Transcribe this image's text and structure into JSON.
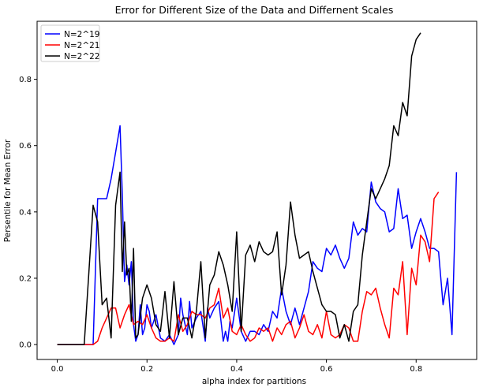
{
  "chart_data": {
    "type": "line",
    "title": "Error for Different Size of the Data and Differnent Scales",
    "xlabel": "alpha index for partitions",
    "ylabel": "Persentile for Mean Error",
    "xlim": [
      -0.045,
      0.935
    ],
    "ylim": [
      -0.045,
      0.975
    ],
    "xticks": [
      0.0,
      0.2,
      0.4,
      0.6,
      0.8
    ],
    "xtick_labels": [
      "0.0",
      "0.2",
      "0.4",
      "0.6",
      "0.8"
    ],
    "yticks": [
      0.0,
      0.2,
      0.4,
      0.6,
      0.8
    ],
    "ytick_labels": [
      "0.0",
      "0.2",
      "0.4",
      "0.6",
      "0.8"
    ],
    "grid": false,
    "legend": "top-left",
    "series": [
      {
        "name": "N=2^19",
        "color": "#0000ff",
        "x": [
          0.0,
          0.02,
          0.04,
          0.06,
          0.08,
          0.09,
          0.1,
          0.11,
          0.12,
          0.13,
          0.14,
          0.145,
          0.15,
          0.155,
          0.16,
          0.165,
          0.17,
          0.175,
          0.18,
          0.185,
          0.19,
          0.195,
          0.2,
          0.205,
          0.21,
          0.22,
          0.23,
          0.24,
          0.25,
          0.26,
          0.27,
          0.275,
          0.28,
          0.29,
          0.295,
          0.3,
          0.31,
          0.32,
          0.33,
          0.335,
          0.34,
          0.35,
          0.36,
          0.37,
          0.375,
          0.38,
          0.385,
          0.39,
          0.4,
          0.41,
          0.42,
          0.43,
          0.44,
          0.45,
          0.46,
          0.47,
          0.48,
          0.49,
          0.5,
          0.51,
          0.52,
          0.53,
          0.54,
          0.55,
          0.56,
          0.57,
          0.58,
          0.59,
          0.6,
          0.61,
          0.62,
          0.63,
          0.64,
          0.65,
          0.66,
          0.67,
          0.68,
          0.69,
          0.7,
          0.71,
          0.72,
          0.73,
          0.74,
          0.75,
          0.76,
          0.77,
          0.78,
          0.79,
          0.8,
          0.81,
          0.82,
          0.83,
          0.84,
          0.85,
          0.86,
          0.87,
          0.88,
          0.89
        ],
        "y": [
          0.0,
          0.0,
          0.0,
          0.0,
          0.0,
          0.44,
          0.44,
          0.44,
          0.5,
          0.58,
          0.66,
          0.45,
          0.19,
          0.24,
          0.18,
          0.25,
          0.06,
          0.01,
          0.03,
          0.12,
          0.03,
          0.05,
          0.12,
          0.1,
          0.05,
          0.09,
          0.02,
          0.01,
          0.03,
          0.0,
          0.03,
          0.14,
          0.09,
          0.03,
          0.13,
          0.05,
          0.08,
          0.1,
          0.01,
          0.11,
          0.08,
          0.11,
          0.13,
          0.01,
          0.04,
          0.01,
          0.07,
          0.05,
          0.14,
          0.04,
          0.01,
          0.04,
          0.04,
          0.03,
          0.06,
          0.04,
          0.1,
          0.08,
          0.17,
          0.1,
          0.06,
          0.11,
          0.06,
          0.11,
          0.16,
          0.25,
          0.23,
          0.22,
          0.29,
          0.27,
          0.3,
          0.26,
          0.23,
          0.26,
          0.37,
          0.33,
          0.35,
          0.34,
          0.49,
          0.43,
          0.41,
          0.4,
          0.34,
          0.35,
          0.47,
          0.38,
          0.39,
          0.29,
          0.34,
          0.38,
          0.34,
          0.29,
          0.29,
          0.28,
          0.12,
          0.2,
          0.03,
          0.52
        ]
      },
      {
        "name": "N=2^21",
        "color": "#ff0000",
        "x": [
          0.0,
          0.02,
          0.04,
          0.06,
          0.08,
          0.09,
          0.1,
          0.11,
          0.12,
          0.13,
          0.14,
          0.15,
          0.16,
          0.17,
          0.18,
          0.19,
          0.2,
          0.21,
          0.22,
          0.23,
          0.24,
          0.25,
          0.26,
          0.27,
          0.28,
          0.29,
          0.3,
          0.31,
          0.32,
          0.33,
          0.34,
          0.35,
          0.36,
          0.37,
          0.38,
          0.39,
          0.4,
          0.41,
          0.42,
          0.43,
          0.44,
          0.45,
          0.46,
          0.47,
          0.48,
          0.49,
          0.5,
          0.51,
          0.52,
          0.53,
          0.54,
          0.55,
          0.56,
          0.57,
          0.58,
          0.59,
          0.6,
          0.61,
          0.62,
          0.63,
          0.64,
          0.65,
          0.66,
          0.67,
          0.68,
          0.69,
          0.7,
          0.71,
          0.72,
          0.73,
          0.74,
          0.75,
          0.76,
          0.77,
          0.78,
          0.79,
          0.8,
          0.81,
          0.82,
          0.83,
          0.84,
          0.85
        ],
        "y": [
          0.0,
          0.0,
          0.0,
          0.0,
          0.0,
          0.01,
          0.05,
          0.08,
          0.11,
          0.11,
          0.05,
          0.09,
          0.12,
          0.06,
          0.07,
          0.06,
          0.09,
          0.05,
          0.02,
          0.01,
          0.01,
          0.02,
          0.01,
          0.09,
          0.04,
          0.06,
          0.1,
          0.09,
          0.09,
          0.08,
          0.11,
          0.12,
          0.17,
          0.08,
          0.11,
          0.04,
          0.03,
          0.06,
          0.03,
          0.01,
          0.02,
          0.05,
          0.04,
          0.05,
          0.01,
          0.05,
          0.03,
          0.06,
          0.07,
          0.02,
          0.05,
          0.09,
          0.04,
          0.03,
          0.06,
          0.02,
          0.1,
          0.03,
          0.02,
          0.03,
          0.06,
          0.05,
          0.01,
          0.01,
          0.1,
          0.16,
          0.15,
          0.17,
          0.11,
          0.06,
          0.02,
          0.17,
          0.15,
          0.25,
          0.03,
          0.23,
          0.18,
          0.33,
          0.31,
          0.25,
          0.44,
          0.46
        ]
      },
      {
        "name": "N=2^22",
        "color": "#000000",
        "x": [
          0.0,
          0.02,
          0.04,
          0.06,
          0.07,
          0.08,
          0.09,
          0.1,
          0.11,
          0.12,
          0.13,
          0.14,
          0.145,
          0.15,
          0.155,
          0.16,
          0.165,
          0.17,
          0.175,
          0.18,
          0.19,
          0.2,
          0.21,
          0.22,
          0.23,
          0.24,
          0.25,
          0.26,
          0.27,
          0.28,
          0.29,
          0.3,
          0.31,
          0.32,
          0.33,
          0.34,
          0.35,
          0.36,
          0.37,
          0.38,
          0.39,
          0.4,
          0.41,
          0.42,
          0.43,
          0.44,
          0.45,
          0.46,
          0.47,
          0.48,
          0.49,
          0.5,
          0.51,
          0.52,
          0.53,
          0.54,
          0.55,
          0.56,
          0.57,
          0.58,
          0.59,
          0.6,
          0.61,
          0.62,
          0.63,
          0.64,
          0.65,
          0.66,
          0.67,
          0.68,
          0.69,
          0.7,
          0.71,
          0.72,
          0.73,
          0.74,
          0.75,
          0.76,
          0.77,
          0.78,
          0.79,
          0.8,
          0.81
        ],
        "y": [
          0.0,
          0.0,
          0.0,
          0.0,
          0.21,
          0.42,
          0.37,
          0.12,
          0.14,
          0.02,
          0.42,
          0.52,
          0.22,
          0.37,
          0.21,
          0.23,
          0.07,
          0.29,
          0.02,
          0.03,
          0.14,
          0.18,
          0.14,
          0.06,
          0.04,
          0.16,
          0.02,
          0.19,
          0.03,
          0.08,
          0.08,
          0.02,
          0.1,
          0.25,
          0.02,
          0.18,
          0.21,
          0.28,
          0.24,
          0.18,
          0.1,
          0.34,
          0.04,
          0.27,
          0.3,
          0.25,
          0.31,
          0.28,
          0.27,
          0.28,
          0.34,
          0.15,
          0.24,
          0.43,
          0.33,
          0.26,
          0.27,
          0.28,
          0.22,
          0.17,
          0.12,
          0.1,
          0.1,
          0.09,
          0.02,
          0.06,
          0.01,
          0.1,
          0.12,
          0.27,
          0.37,
          0.47,
          0.44,
          0.47,
          0.5,
          0.54,
          0.66,
          0.63,
          0.73,
          0.69,
          0.87,
          0.92,
          0.94
        ]
      }
    ]
  }
}
